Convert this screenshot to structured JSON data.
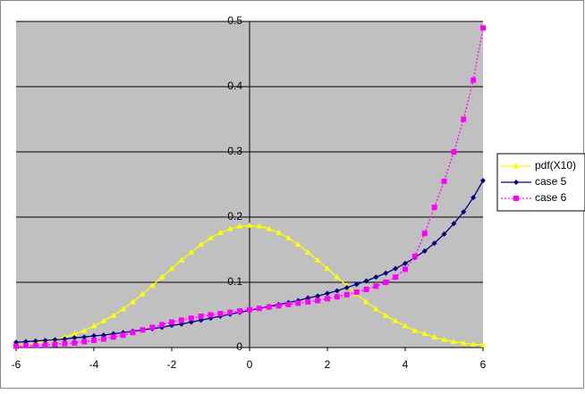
{
  "chart_data": {
    "type": "line",
    "x": [
      -6,
      -5.75,
      -5.5,
      -5.25,
      -5,
      -4.75,
      -4.5,
      -4.25,
      -4,
      -3.75,
      -3.5,
      -3.25,
      -3,
      -2.75,
      -2.5,
      -2.25,
      -2,
      -1.75,
      -1.5,
      -1.25,
      -1,
      -0.75,
      -0.5,
      -0.25,
      0,
      0.25,
      0.5,
      0.75,
      1,
      1.25,
      1.5,
      1.75,
      2,
      2.25,
      2.5,
      2.75,
      3,
      3.25,
      3.5,
      3.75,
      4,
      4.25,
      4.5,
      4.75,
      5,
      5.25,
      5.5,
      5.75,
      6
    ],
    "series": [
      {
        "name": "pdf(X10)",
        "color": "#ffff00",
        "values": [
          0.004,
          0.005,
          0.007,
          0.009,
          0.012,
          0.016,
          0.021,
          0.026,
          0.033,
          0.041,
          0.049,
          0.059,
          0.07,
          0.082,
          0.095,
          0.108,
          0.121,
          0.134,
          0.146,
          0.158,
          0.168,
          0.176,
          0.182,
          0.186,
          0.187,
          0.186,
          0.182,
          0.176,
          0.168,
          0.158,
          0.146,
          0.134,
          0.121,
          0.108,
          0.095,
          0.082,
          0.07,
          0.059,
          0.049,
          0.041,
          0.033,
          0.026,
          0.021,
          0.016,
          0.012,
          0.009,
          0.007,
          0.005,
          0.004
        ]
      },
      {
        "name": "case 5",
        "color": "#000080",
        "values": [
          0.008,
          0.009,
          0.01,
          0.011,
          0.012,
          0.013,
          0.015,
          0.016,
          0.018,
          0.019,
          0.021,
          0.023,
          0.025,
          0.027,
          0.029,
          0.031,
          0.034,
          0.036,
          0.039,
          0.042,
          0.045,
          0.048,
          0.051,
          0.054,
          0.057,
          0.06,
          0.063,
          0.066,
          0.069,
          0.072,
          0.076,
          0.079,
          0.083,
          0.087,
          0.092,
          0.097,
          0.102,
          0.108,
          0.114,
          0.121,
          0.129,
          0.138,
          0.148,
          0.16,
          0.174,
          0.19,
          0.208,
          0.23,
          0.256
        ]
      },
      {
        "name": "case 6",
        "color": "#ff00ff",
        "values": [
          0.002,
          0.003,
          0.003,
          0.004,
          0.005,
          0.006,
          0.007,
          0.009,
          0.011,
          0.013,
          0.016,
          0.019,
          0.023,
          0.027,
          0.031,
          0.035,
          0.039,
          0.042,
          0.045,
          0.048,
          0.05,
          0.052,
          0.054,
          0.056,
          0.058,
          0.06,
          0.062,
          0.064,
          0.066,
          0.068,
          0.07,
          0.072,
          0.075,
          0.078,
          0.081,
          0.085,
          0.089,
          0.094,
          0.1,
          0.108,
          0.12,
          0.14,
          0.175,
          0.215,
          0.255,
          0.3,
          0.35,
          0.41,
          0.49
        ]
      }
    ],
    "xlim": [
      -6,
      6
    ],
    "xticks": [
      -6,
      -4,
      -2,
      0,
      2,
      4,
      6
    ],
    "ylim": [
      0,
      0.5
    ],
    "yticks": [
      0,
      0.1,
      0.2,
      0.3,
      0.4,
      0.5
    ],
    "grid": true,
    "legend": "right"
  }
}
